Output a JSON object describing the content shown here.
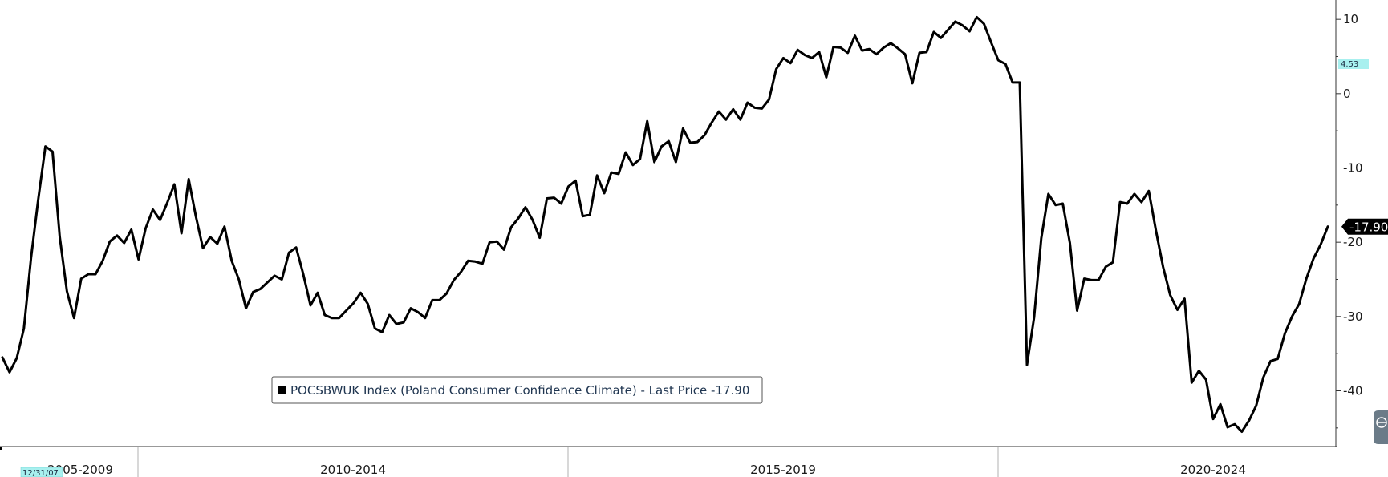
{
  "chart_data": {
    "type": "line",
    "y_axis_side": "right",
    "ylim": [
      -47.5,
      12.5
    ],
    "yticks": [
      10,
      0,
      -10,
      -20,
      -30,
      -40
    ],
    "grid": false,
    "period_labels": [
      "2005-2009",
      "2010-2014",
      "2015-2019",
      "2020-2024"
    ],
    "x_start_label": "12/31/07",
    "marker_value": "4.53",
    "last_price_label": "-17.90",
    "legend": {
      "text": "POCSBWUK Index (Poland Consumer Confidence Climate) - Last Price -17.90",
      "placement": "bottom-center"
    },
    "series": [
      {
        "name": "POCSBWUK Index (Poland Consumer Confidence Climate)",
        "color": "#000000",
        "x_start": "2007-12",
        "frequency": "monthly",
        "values": [
          -35.5,
          -37.5,
          -35.6,
          -31.6,
          -22.1,
          -14.3,
          -7.1,
          -7.8,
          -19.2,
          -26.6,
          -30.2,
          -24.9,
          -24.3,
          -24.3,
          -22.5,
          -19.9,
          -19.1,
          -20.1,
          -18.3,
          -22.3,
          -18.1,
          -15.6,
          -17.0,
          -14.7,
          -12.2,
          -18.8,
          -11.5,
          -16.5,
          -20.8,
          -19.3,
          -20.2,
          -17.9,
          -22.5,
          -25.0,
          -28.9,
          -26.7,
          -26.3,
          -25.4,
          -24.5,
          -25.0,
          -21.4,
          -20.7,
          -24.3,
          -28.5,
          -26.8,
          -29.8,
          -30.2,
          -30.2,
          -29.2,
          -28.2,
          -26.8,
          -28.3,
          -31.6,
          -32.1,
          -29.8,
          -31.0,
          -30.8,
          -28.9,
          -29.4,
          -30.2,
          -27.8,
          -27.8,
          -26.9,
          -25.1,
          -24.0,
          -22.5,
          -22.6,
          -22.9,
          -20.0,
          -19.9,
          -21.0,
          -18.0,
          -16.8,
          -15.3,
          -17.0,
          -19.4,
          -14.1,
          -14.0,
          -14.8,
          -12.5,
          -11.7,
          -16.5,
          -16.3,
          -11.0,
          -13.4,
          -10.6,
          -10.8,
          -7.9,
          -9.6,
          -8.8,
          -3.7,
          -9.2,
          -7.1,
          -6.4,
          -9.2,
          -4.7,
          -6.6,
          -6.5,
          -5.6,
          -3.9,
          -2.4,
          -3.5,
          -2.1,
          -3.5,
          -1.2,
          -1.9,
          -2.0,
          -0.8,
          3.3,
          4.8,
          4.1,
          5.9,
          5.2,
          4.8,
          5.6,
          2.2,
          6.3,
          6.2,
          5.5,
          7.8,
          5.8,
          6.0,
          5.3,
          6.2,
          6.8,
          6.1,
          5.3,
          1.4,
          5.5,
          5.6,
          8.3,
          7.5,
          8.6,
          9.7,
          9.2,
          8.4,
          10.3,
          9.4,
          6.9,
          4.5,
          4.0,
          1.5,
          1.5,
          -36.5,
          -30.1,
          -19.5,
          -13.5,
          -15.0,
          -14.8,
          -20.1,
          -29.2,
          -24.9,
          -25.1,
          -25.1,
          -23.3,
          -22.7,
          -14.6,
          -14.8,
          -13.5,
          -14.6,
          -13.1,
          -18.4,
          -23.3,
          -27.1,
          -29.1,
          -27.6,
          -38.9,
          -37.3,
          -38.5,
          -43.8,
          -41.8,
          -44.9,
          -44.5,
          -45.5,
          -44.0,
          -42.0,
          -38.2,
          -36.0,
          -35.7,
          -32.3,
          -30.0,
          -28.3,
          -24.9,
          -22.2,
          -20.3,
          -17.9
        ]
      }
    ]
  }
}
